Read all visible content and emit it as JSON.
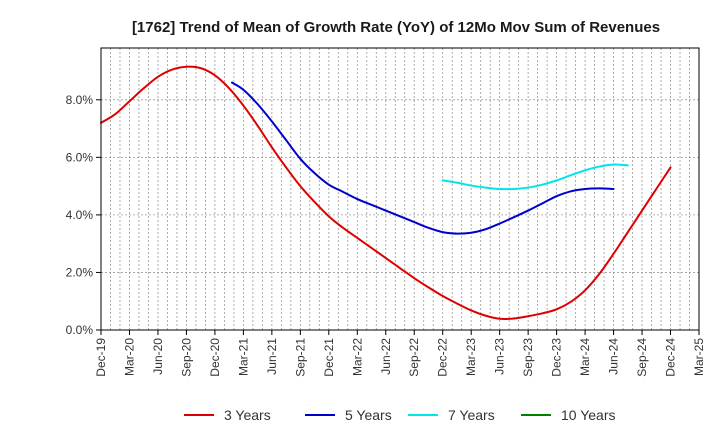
{
  "chart_data": {
    "type": "line",
    "title": "[1762]  Trend of Mean of Growth Rate (YoY) of 12Mo Mov Sum of Revenues",
    "xlabel": "",
    "ylabel": "",
    "ylim": [
      0,
      9.8
    ],
    "y_ticks": [
      0,
      2,
      4,
      6,
      8
    ],
    "y_tick_labels": [
      "0.0%",
      "2.0%",
      "4.0%",
      "6.0%",
      "8.0%"
    ],
    "x_categories": [
      "Dec-19",
      "Mar-20",
      "Jun-20",
      "Sep-20",
      "Dec-20",
      "Mar-21",
      "Jun-21",
      "Sep-21",
      "Dec-21",
      "Mar-22",
      "Jun-22",
      "Sep-22",
      "Dec-22",
      "Mar-23",
      "Jun-23",
      "Sep-23",
      "Dec-23",
      "Mar-24",
      "Jun-24",
      "Sep-24",
      "Dec-24",
      "Mar-25"
    ],
    "grid": true,
    "legend_position": "bottom",
    "series": [
      {
        "name": "3 Years",
        "color": "#dd0000",
        "points": [
          [
            0,
            7.2
          ],
          [
            0.5,
            7.5
          ],
          [
            1,
            7.95
          ],
          [
            1.5,
            8.4
          ],
          [
            2,
            8.8
          ],
          [
            2.5,
            9.05
          ],
          [
            3,
            9.15
          ],
          [
            3.5,
            9.1
          ],
          [
            4,
            8.85
          ],
          [
            4.5,
            8.4
          ],
          [
            5,
            7.8
          ],
          [
            5.5,
            7.1
          ],
          [
            6,
            6.35
          ],
          [
            6.5,
            5.65
          ],
          [
            7,
            5.0
          ],
          [
            7.5,
            4.45
          ],
          [
            8,
            3.95
          ],
          [
            8.5,
            3.55
          ],
          [
            9,
            3.2
          ],
          [
            9.5,
            2.85
          ],
          [
            10,
            2.5
          ],
          [
            10.5,
            2.15
          ],
          [
            11,
            1.8
          ],
          [
            11.5,
            1.48
          ],
          [
            12,
            1.18
          ],
          [
            12.5,
            0.92
          ],
          [
            13,
            0.68
          ],
          [
            13.5,
            0.5
          ],
          [
            14,
            0.39
          ],
          [
            14.5,
            0.4
          ],
          [
            15,
            0.48
          ],
          [
            15.5,
            0.58
          ],
          [
            16,
            0.72
          ],
          [
            16.5,
            0.98
          ],
          [
            17,
            1.38
          ],
          [
            17.5,
            1.95
          ],
          [
            18,
            2.65
          ],
          [
            18.5,
            3.4
          ],
          [
            19,
            4.15
          ],
          [
            19.5,
            4.9
          ],
          [
            20,
            5.65
          ]
        ]
      },
      {
        "name": "5 Years",
        "color": "#0000cc",
        "points": [
          [
            4.6,
            8.6
          ],
          [
            5,
            8.35
          ],
          [
            5.5,
            7.85
          ],
          [
            6,
            7.25
          ],
          [
            6.5,
            6.6
          ],
          [
            7,
            5.95
          ],
          [
            7.5,
            5.45
          ],
          [
            8,
            5.05
          ],
          [
            8.5,
            4.8
          ],
          [
            9,
            4.55
          ],
          [
            9.5,
            4.35
          ],
          [
            10,
            4.15
          ],
          [
            10.5,
            3.95
          ],
          [
            11,
            3.75
          ],
          [
            11.5,
            3.55
          ],
          [
            12,
            3.4
          ],
          [
            12.5,
            3.35
          ],
          [
            13,
            3.38
          ],
          [
            13.5,
            3.5
          ],
          [
            14,
            3.7
          ],
          [
            14.5,
            3.92
          ],
          [
            15,
            4.15
          ],
          [
            15.5,
            4.4
          ],
          [
            16,
            4.65
          ],
          [
            16.5,
            4.82
          ],
          [
            17,
            4.9
          ],
          [
            17.5,
            4.92
          ],
          [
            18,
            4.9
          ]
        ]
      },
      {
        "name": "7 Years",
        "color": "#00e5e5",
        "points": [
          [
            12,
            5.2
          ],
          [
            12.5,
            5.12
          ],
          [
            13,
            5.02
          ],
          [
            13.5,
            4.95
          ],
          [
            14,
            4.9
          ],
          [
            14.5,
            4.9
          ],
          [
            15,
            4.95
          ],
          [
            15.5,
            5.05
          ],
          [
            16,
            5.2
          ],
          [
            16.5,
            5.38
          ],
          [
            17,
            5.55
          ],
          [
            17.5,
            5.68
          ],
          [
            18,
            5.75
          ],
          [
            18.5,
            5.72
          ]
        ]
      },
      {
        "name": "10 Years",
        "color": "#008000",
        "points": []
      }
    ]
  }
}
